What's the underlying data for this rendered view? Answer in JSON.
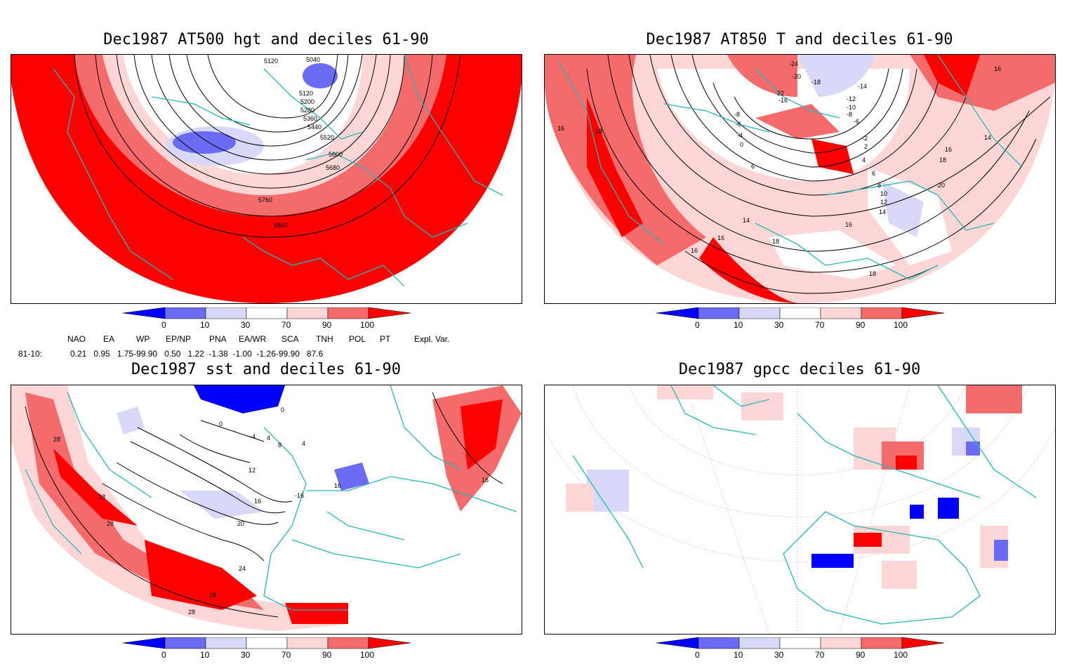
{
  "panels": [
    {
      "id": "hgt500",
      "title": "Dec1987 AT500 hgt and deciles 61-90",
      "contour_labels": [
        "5040",
        "5120",
        "5120",
        "5200",
        "5280",
        "5360",
        "5440",
        "5520",
        "5600",
        "5680",
        "5760",
        "5840"
      ]
    },
    {
      "id": "t850",
      "title": "Dec1987 AT850 T and deciles 61-90",
      "contour_labels": [
        "-24",
        "-20",
        "-18",
        "-22",
        "-16",
        "-14",
        "-12",
        "-10",
        "-8",
        "-6",
        "-8",
        "-6",
        "-4",
        "-2",
        "0",
        "2",
        "4",
        "6",
        "6",
        "8",
        "10",
        "12",
        "14",
        "16",
        "14",
        "16",
        "16",
        "18",
        "16",
        "18",
        "20",
        "18",
        "16",
        "16",
        "14",
        "18"
      ]
    },
    {
      "id": "sst",
      "title": "Dec1987 sst and deciles 61-90",
      "contour_labels": [
        "0",
        "0",
        "-4",
        "4",
        "8",
        "4",
        "12",
        "16",
        "20",
        "24",
        "28",
        "28",
        "28",
        "28",
        "28",
        "16",
        "16",
        "-16"
      ]
    },
    {
      "id": "gpcc",
      "title": "Dec1987 gpcc deciles 61-90",
      "contour_labels": []
    }
  ],
  "colorbar": {
    "labels": [
      "0",
      "10",
      "30",
      "70",
      "90",
      "100"
    ],
    "colors": [
      "#0000ff",
      "#6b6bf5",
      "#d8d8f8",
      "#ffffff",
      "#ffd6d6",
      "#f56b6b",
      "#ff0000"
    ]
  },
  "indices": {
    "headers": [
      "NAO",
      "EA",
      "WP",
      "EP/NP",
      "PNA",
      "EA/WR",
      "SCA",
      "TNH",
      "POL",
      "PT",
      "Expl. Var."
    ],
    "row_label": "81-10:",
    "values_text": "0.21   0.95   1.75-99.90   0.50   1.22  -1.38  -1.00  -1.26-99.90   87.6"
  }
}
